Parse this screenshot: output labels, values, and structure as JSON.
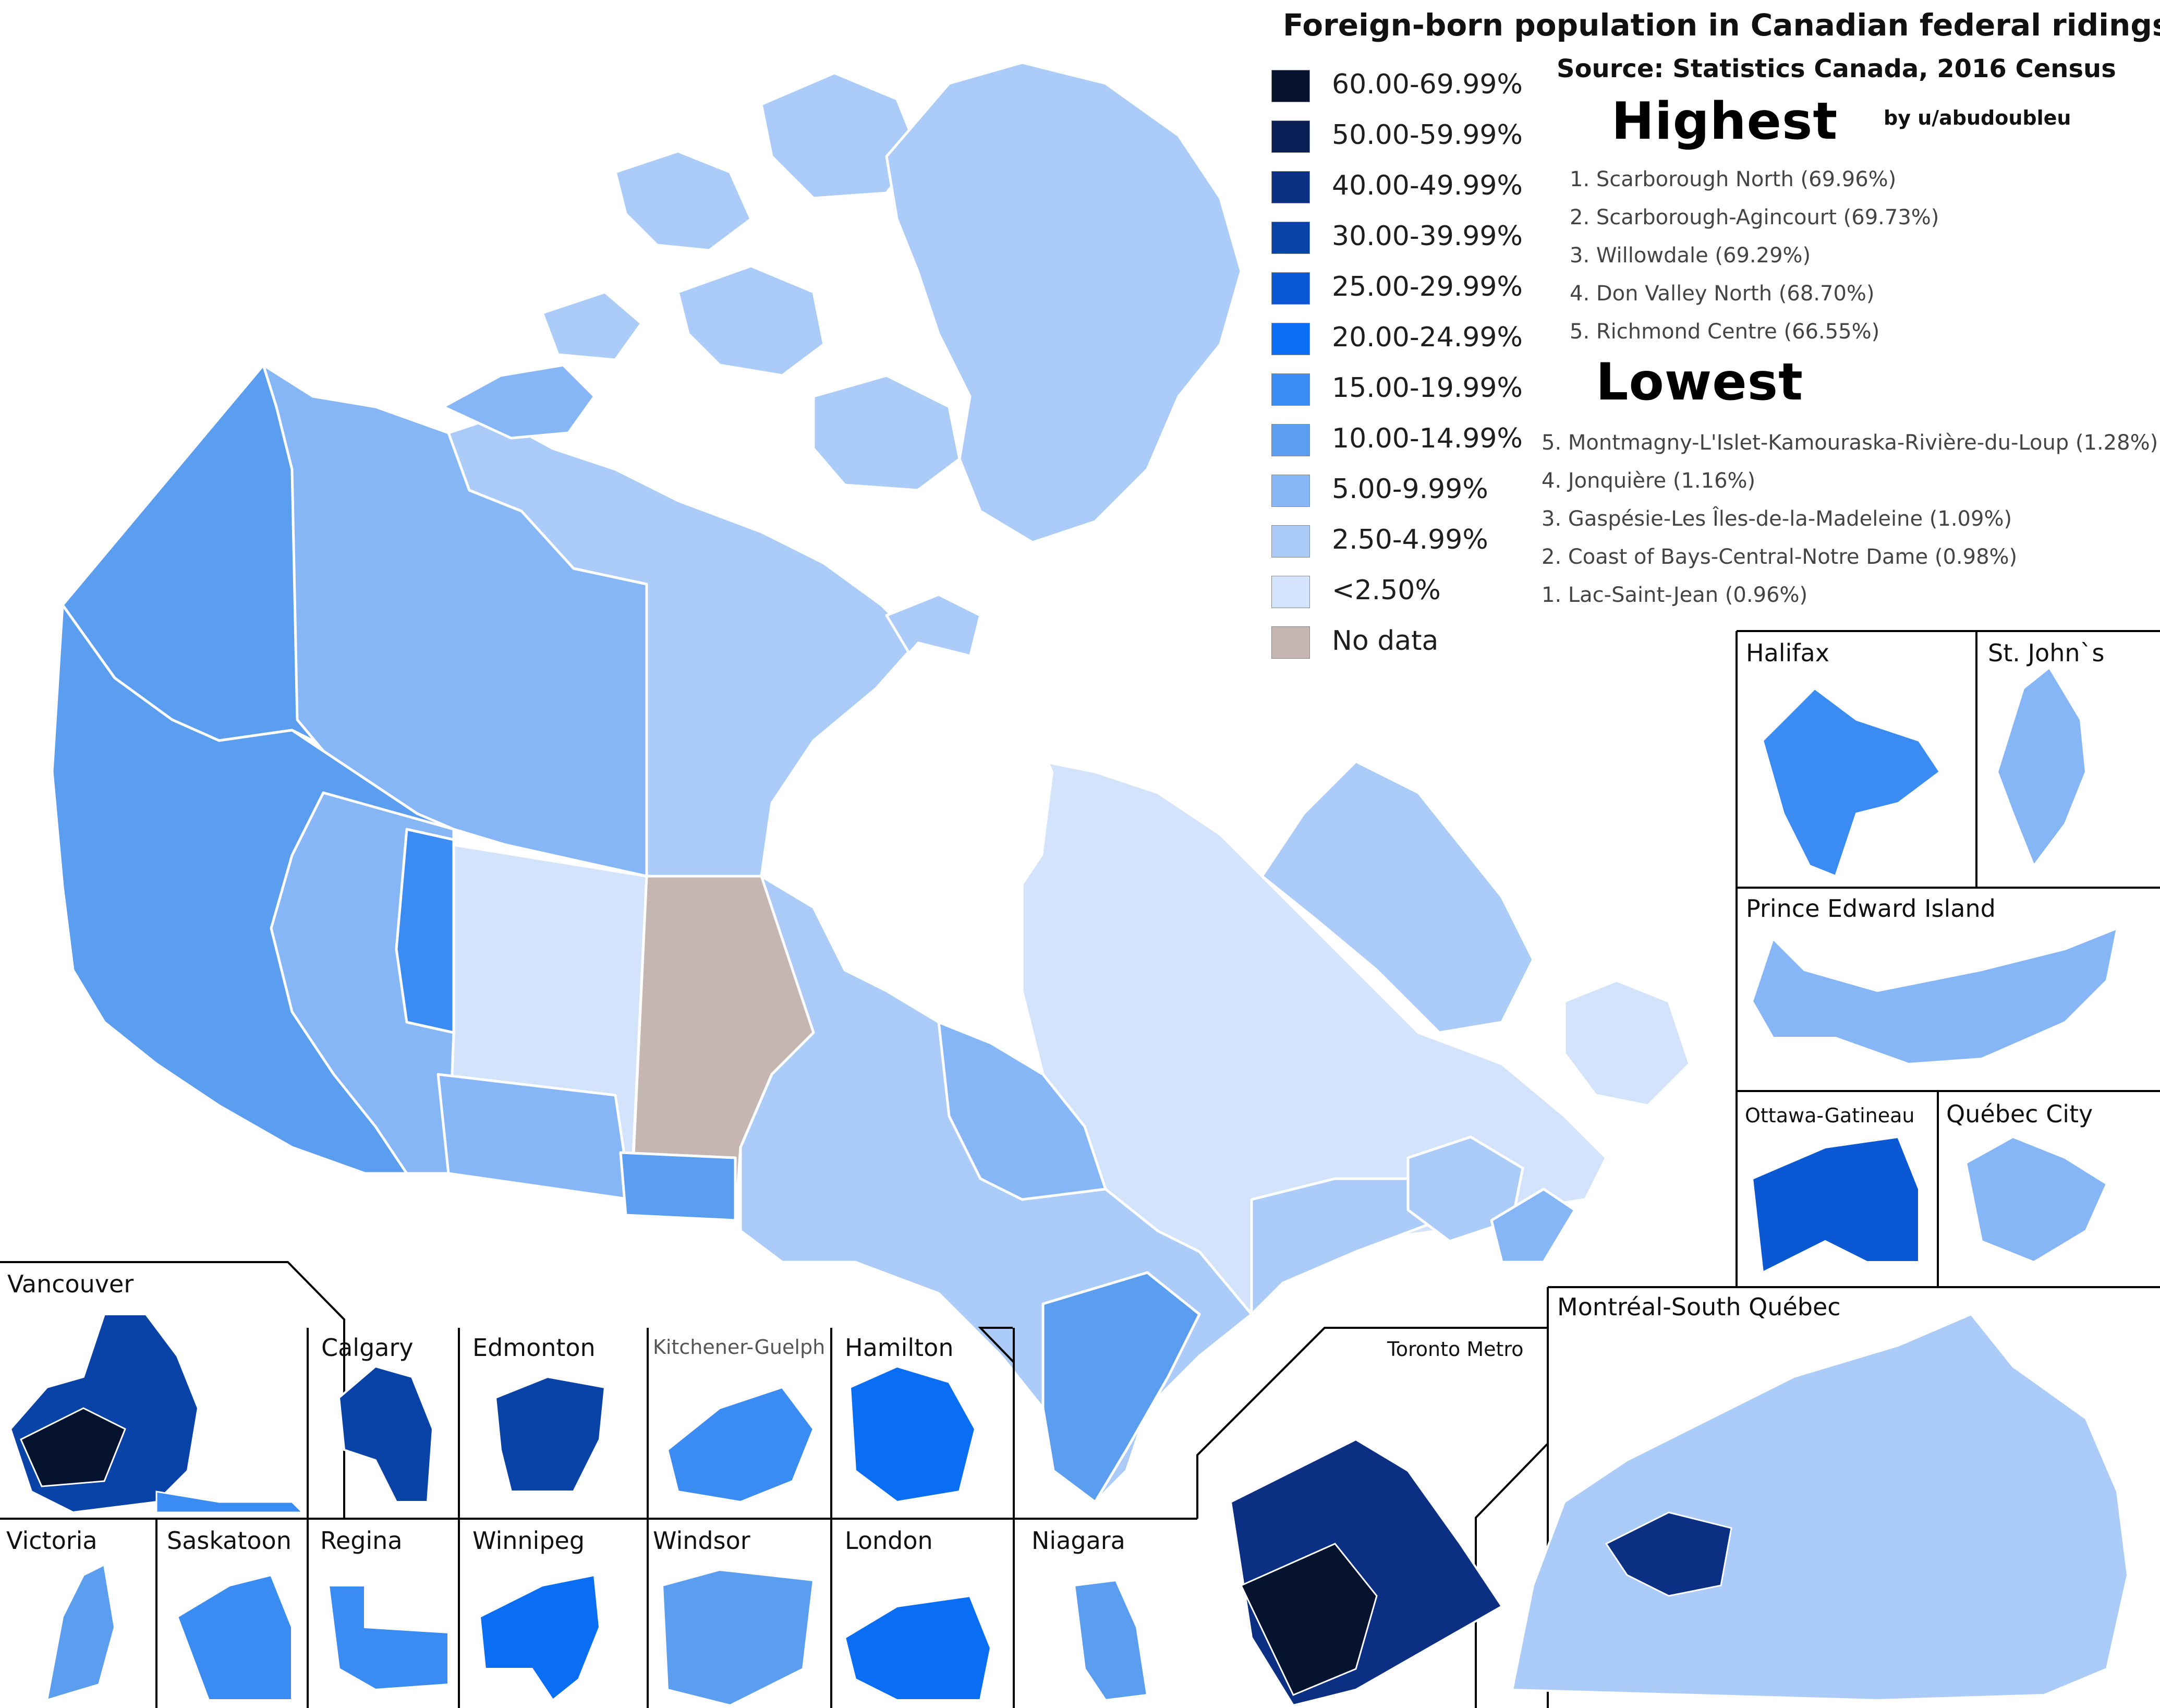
{
  "title": "Foreign-born population in Canadian federal ridings",
  "source": "Source: Statistics Canada, 2016 Census",
  "credit": "by u/abudoubleu",
  "legend": [
    {
      "label": "60.00-69.99%",
      "color": "#05132e"
    },
    {
      "label": "50.00-59.99%",
      "color": "#0a1f55"
    },
    {
      "label": "40.00-49.99%",
      "color": "#0b2f82"
    },
    {
      "label": "30.00-39.99%",
      "color": "#0a43a8"
    },
    {
      "label": "25.00-29.99%",
      "color": "#0b58d4"
    },
    {
      "label": "20.00-24.99%",
      "color": "#0a6ef5"
    },
    {
      "label": "15.00-19.99%",
      "color": "#3a8bf2"
    },
    {
      "label": "10.00-14.99%",
      "color": "#5b9ef0"
    },
    {
      "label": "5.00-9.99%",
      "color": "#86b6f5"
    },
    {
      "label": "2.50-4.99%",
      "color": "#abccf8"
    },
    {
      "label": "<2.50%",
      "color": "#d3e3fb"
    },
    {
      "label": "No data",
      "color": "#c6b6b2"
    }
  ],
  "highest": {
    "heading": "Highest",
    "items": [
      "1. Scarborough North (69.96%)",
      "2. Scarborough-Agincourt (69.73%)",
      "3. Willowdale (69.29%)",
      "4. Don Valley North (68.70%)",
      "5. Richmond Centre (66.55%)"
    ]
  },
  "lowest": {
    "heading": "Lowest",
    "items": [
      "5. Montmagny-L'Islet-Kamouraska-Rivière-du-Loup (1.28%)",
      "4. Jonquière (1.16%)",
      "3. Gaspésie-Les Îles-de-la-Madeleine (1.09%)",
      "2. Coast of Bays-Central-Notre Dame (0.98%)",
      "1. Lac-Saint-Jean (0.96%)"
    ]
  },
  "insets": {
    "halifax": "Halifax",
    "st_johns": "St. John`s",
    "pei": "Prince Edward Island",
    "ottawa_gatineau": "Ottawa-Gatineau",
    "quebec_city": "Québec City",
    "montreal": "Montréal-South Québec",
    "vancouver": "Vancouver",
    "calgary": "Calgary",
    "edmonton": "Edmonton",
    "kitchener_guelph": "Kitchener-Guelph",
    "hamilton": "Hamilton",
    "toronto": "Toronto Metro",
    "victoria": "Victoria",
    "saskatoon": "Saskatoon",
    "regina": "Regina",
    "winnipeg": "Winnipeg",
    "windsor": "Windsor",
    "london": "London",
    "niagara": "Niagara"
  }
}
